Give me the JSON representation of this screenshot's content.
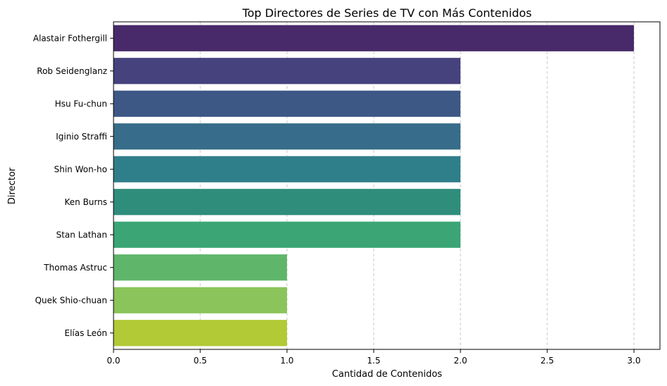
{
  "chart_data": {
    "type": "bar",
    "orientation": "horizontal",
    "title": "Top Directores de Series de TV con Más Contenidos",
    "xlabel": "Cantidad de Contenidos",
    "ylabel": "Director",
    "categories": [
      "Alastair Fothergill",
      "Rob Seidenglanz",
      "Hsu Fu-chun",
      "Iginio Straffi",
      "Shin Won-ho",
      "Ken Burns",
      "Stan Lathan",
      "Thomas Astruc",
      "Quek Shio-chuan",
      "Elías León"
    ],
    "values": [
      3,
      2,
      2,
      2,
      2,
      2,
      2,
      1,
      1,
      1
    ],
    "colors": [
      "#482a6a",
      "#46427e",
      "#3e5886",
      "#376d8a",
      "#2f7f8a",
      "#2f8d7c",
      "#3ba576",
      "#5fb66b",
      "#8bc45a",
      "#b1ca35"
    ],
    "xlim": [
      0,
      3.15
    ],
    "xticks": [
      "0.0",
      "0.5",
      "1.0",
      "1.5",
      "2.0",
      "2.5",
      "3.0"
    ],
    "grid": "x-dashed",
    "legend": "none"
  }
}
